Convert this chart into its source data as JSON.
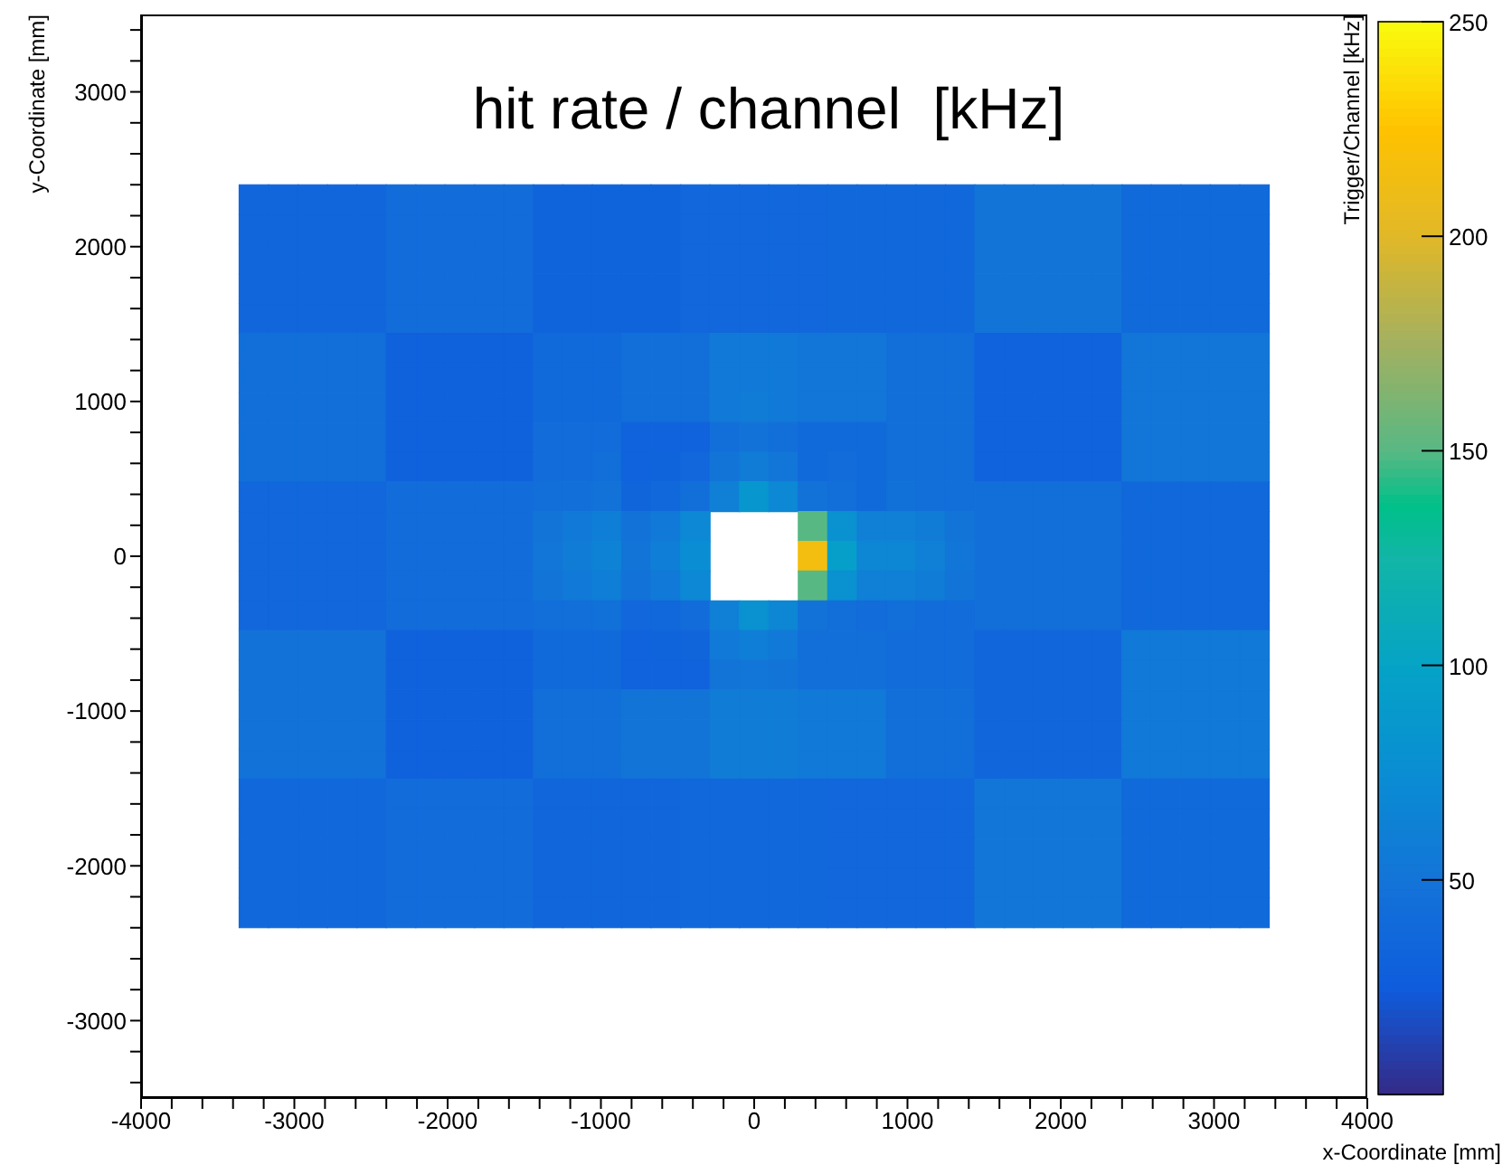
{
  "chart_data": {
    "type": "heatmap",
    "title": "hit rate / channel  [kHz]",
    "xlabel": "x-Coordinate [mm]",
    "ylabel": "y-Coordinate [mm]",
    "clabel": "Trigger/Channel [kHz]",
    "x": [
      -3264,
      -3072,
      -2880,
      -2688,
      -2496,
      -2304,
      -2112,
      -1920,
      -1728,
      -1536,
      -1344,
      -1152,
      -960,
      -768,
      -576,
      -384,
      -192,
      0,
      192,
      384,
      576,
      768,
      960,
      1152,
      1344,
      1536,
      1728,
      1920,
      2112,
      2304,
      2496,
      2688,
      2880,
      3072,
      3264
    ],
    "y": [
      2304,
      2112,
      1920,
      1728,
      1536,
      1344,
      1152,
      960,
      768,
      576,
      384,
      192,
      0,
      -192,
      -384,
      -576,
      -768,
      -960,
      -1152,
      -1344,
      -1536,
      -1728,
      -1920,
      -2112,
      -2304
    ],
    "xlim": [
      -4000,
      4000
    ],
    "ylim": [
      -3500,
      3500
    ],
    "xticks": [
      -4000,
      {
        "value": -3800,
        "label": null
      },
      {
        "value": -3600,
        "label": null
      },
      {
        "value": -3400,
        "label": null
      },
      {
        "value": -3200,
        "label": null
      },
      -3000,
      {
        "value": -2800,
        "label": null
      },
      {
        "value": -2600,
        "label": null
      },
      {
        "value": -2400,
        "label": null
      },
      {
        "value": -2200,
        "label": null
      },
      -2000,
      {
        "value": -1800,
        "label": null
      },
      {
        "value": -1600,
        "label": null
      },
      {
        "value": -1400,
        "label": null
      },
      {
        "value": -1200,
        "label": null
      },
      -1000,
      {
        "value": -800,
        "label": null
      },
      {
        "value": -600,
        "label": null
      },
      {
        "value": -400,
        "label": null
      },
      {
        "value": -200,
        "label": null
      },
      0,
      {
        "value": 200,
        "label": null
      },
      {
        "value": 400,
        "label": null
      },
      {
        "value": 600,
        "label": null
      },
      {
        "value": 800,
        "label": null
      },
      1000,
      {
        "value": 1200,
        "label": null
      },
      {
        "value": 1400,
        "label": null
      },
      {
        "value": 1600,
        "label": null
      },
      {
        "value": 1800,
        "label": null
      },
      2000,
      {
        "value": 2200,
        "label": null
      },
      {
        "value": 2400,
        "label": null
      },
      {
        "value": 2600,
        "label": null
      },
      {
        "value": 2800,
        "label": null
      },
      3000,
      {
        "value": 3200,
        "label": null
      },
      {
        "value": 3400,
        "label": null
      },
      {
        "value": 3600,
        "label": null
      },
      {
        "value": 3800,
        "label": null
      },
      4000
    ],
    "yticks": [
      {
        "value": -3400,
        "label": null
      },
      {
        "value": -3200,
        "label": null
      },
      -3000,
      {
        "value": -2800,
        "label": null
      },
      {
        "value": -2600,
        "label": null
      },
      {
        "value": -2400,
        "label": null
      },
      {
        "value": -2200,
        "label": null
      },
      -2000,
      {
        "value": -1800,
        "label": null
      },
      {
        "value": -1600,
        "label": null
      },
      {
        "value": -1400,
        "label": null
      },
      {
        "value": -1200,
        "label": null
      },
      -1000,
      {
        "value": -800,
        "label": null
      },
      {
        "value": -600,
        "label": null
      },
      {
        "value": -400,
        "label": null
      },
      {
        "value": -200,
        "label": null
      },
      0,
      {
        "value": 200,
        "label": null
      },
      {
        "value": 400,
        "label": null
      },
      {
        "value": 600,
        "label": null
      },
      {
        "value": 800,
        "label": null
      },
      1000,
      {
        "value": 1200,
        "label": null
      },
      {
        "value": 1400,
        "label": null
      },
      {
        "value": 1600,
        "label": null
      },
      {
        "value": 1800,
        "label": null
      },
      2000,
      {
        "value": 2200,
        "label": null
      },
      {
        "value": 2400,
        "label": null
      },
      {
        "value": 2600,
        "label": null
      },
      {
        "value": 2800,
        "label": null
      },
      3000,
      {
        "value": 3200,
        "label": null
      },
      {
        "value": 3400,
        "label": null
      }
    ],
    "clim": [
      0,
      250
    ],
    "cticks": [
      50,
      100,
      150,
      200,
      250
    ],
    "cells": [
      [
        35,
        35,
        35,
        35,
        35,
        42,
        42,
        42,
        42,
        42,
        33,
        33,
        33,
        33,
        33,
        36,
        36,
        36,
        36,
        36,
        37,
        37,
        37,
        37,
        37,
        50,
        50,
        50,
        50,
        50,
        40,
        40,
        40,
        40,
        40
      ],
      [
        35,
        35,
        35,
        35,
        35,
        42,
        42,
        42,
        42,
        42,
        33,
        33,
        33,
        33,
        33,
        36,
        36,
        36,
        36,
        36,
        37,
        37,
        37,
        37,
        37,
        50,
        50,
        50,
        50,
        50,
        40,
        40,
        40,
        40,
        40
      ],
      [
        35,
        35,
        35,
        35,
        35,
        42,
        42,
        42,
        42,
        42,
        33,
        33,
        33,
        33,
        33,
        36,
        36,
        36,
        36,
        36,
        37,
        37,
        37,
        37,
        37,
        50,
        50,
        50,
        50,
        50,
        40,
        40,
        40,
        40,
        40
      ],
      [
        35,
        35,
        35,
        35,
        35,
        42,
        42,
        42,
        42,
        42,
        33,
        33,
        33,
        33,
        33,
        36,
        36,
        36,
        36,
        36,
        37,
        37,
        37,
        37,
        37,
        50,
        50,
        50,
        50,
        50,
        40,
        40,
        40,
        40,
        40
      ],
      [
        35,
        35,
        35,
        35,
        35,
        42,
        42,
        42,
        42,
        42,
        33,
        33,
        33,
        33,
        33,
        36,
        36,
        36,
        36,
        36,
        37,
        37,
        37,
        37,
        37,
        50,
        50,
        50,
        50,
        50,
        40,
        40,
        40,
        40,
        40
      ],
      [
        45,
        45,
        45,
        45,
        45,
        30,
        30,
        30,
        30,
        30,
        40,
        40,
        40,
        45,
        45,
        45,
        55,
        55,
        55,
        52,
        52,
        52,
        45,
        45,
        45,
        32,
        32,
        32,
        32,
        32,
        52,
        52,
        52,
        52,
        52
      ],
      [
        45,
        45,
        45,
        45,
        45,
        30,
        30,
        30,
        30,
        30,
        40,
        40,
        40,
        45,
        45,
        45,
        55,
        55,
        55,
        52,
        52,
        52,
        45,
        45,
        45,
        32,
        32,
        32,
        32,
        32,
        52,
        52,
        52,
        52,
        52
      ],
      [
        45,
        45,
        45,
        45,
        45,
        30,
        30,
        30,
        30,
        30,
        40,
        40,
        40,
        45,
        45,
        45,
        55,
        58,
        55,
        52,
        52,
        52,
        45,
        45,
        45,
        32,
        32,
        32,
        32,
        32,
        52,
        52,
        52,
        52,
        52
      ],
      [
        45,
        45,
        45,
        45,
        45,
        30,
        30,
        30,
        30,
        30,
        42,
        42,
        42,
        32,
        32,
        32,
        45,
        48,
        45,
        40,
        40,
        40,
        45,
        45,
        45,
        32,
        32,
        32,
        32,
        32,
        52,
        52,
        52,
        52,
        52
      ],
      [
        45,
        45,
        45,
        45,
        45,
        30,
        30,
        30,
        30,
        30,
        42,
        42,
        44,
        32,
        33,
        36,
        50,
        58,
        52,
        40,
        42,
        40,
        45,
        45,
        45,
        32,
        32,
        32,
        32,
        32,
        52,
        52,
        52,
        52,
        52
      ],
      [
        36,
        36,
        36,
        36,
        36,
        42,
        42,
        42,
        42,
        42,
        44,
        45,
        48,
        34,
        38,
        45,
        62,
        85,
        70,
        48,
        44,
        40,
        46,
        45,
        45,
        45,
        45,
        45,
        45,
        45,
        38,
        38,
        38,
        38,
        38
      ],
      [
        36,
        36,
        36,
        36,
        36,
        42,
        42,
        42,
        42,
        42,
        50,
        55,
        60,
        48,
        55,
        70,
        null,
        null,
        null,
        150,
        80,
        62,
        62,
        58,
        50,
        45,
        45,
        45,
        45,
        45,
        38,
        38,
        38,
        38,
        38
      ],
      [
        36,
        36,
        36,
        36,
        36,
        42,
        42,
        42,
        42,
        42,
        52,
        58,
        65,
        50,
        60,
        75,
        null,
        null,
        null,
        215,
        95,
        68,
        68,
        62,
        52,
        45,
        45,
        45,
        45,
        45,
        38,
        38,
        38,
        38,
        38
      ],
      [
        36,
        36,
        36,
        36,
        36,
        42,
        42,
        42,
        42,
        42,
        50,
        55,
        60,
        48,
        55,
        70,
        null,
        null,
        null,
        150,
        80,
        62,
        62,
        58,
        50,
        45,
        45,
        45,
        45,
        45,
        38,
        38,
        38,
        38,
        38
      ],
      [
        36,
        36,
        36,
        36,
        36,
        42,
        42,
        42,
        42,
        42,
        44,
        44,
        46,
        36,
        38,
        42,
        62,
        80,
        68,
        48,
        44,
        42,
        44,
        42,
        42,
        45,
        45,
        45,
        45,
        45,
        38,
        38,
        38,
        38,
        38
      ],
      [
        48,
        48,
        48,
        48,
        48,
        30,
        30,
        30,
        30,
        30,
        40,
        40,
        40,
        32,
        33,
        34,
        55,
        60,
        55,
        45,
        45,
        44,
        42,
        42,
        42,
        35,
        35,
        35,
        35,
        35,
        55,
        55,
        55,
        55,
        55
      ],
      [
        48,
        48,
        48,
        48,
        48,
        30,
        30,
        30,
        30,
        30,
        40,
        40,
        40,
        32,
        32,
        32,
        50,
        52,
        50,
        45,
        45,
        45,
        42,
        42,
        42,
        35,
        35,
        35,
        35,
        35,
        55,
        55,
        55,
        55,
        55
      ],
      [
        48,
        48,
        48,
        48,
        48,
        30,
        30,
        30,
        30,
        30,
        45,
        45,
        45,
        50,
        50,
        50,
        58,
        58,
        58,
        55,
        55,
        55,
        45,
        45,
        45,
        35,
        35,
        35,
        35,
        35,
        55,
        55,
        55,
        55,
        55
      ],
      [
        48,
        48,
        48,
        48,
        48,
        30,
        30,
        30,
        30,
        30,
        45,
        45,
        45,
        50,
        50,
        50,
        58,
        58,
        58,
        55,
        55,
        55,
        45,
        45,
        45,
        35,
        35,
        35,
        35,
        35,
        55,
        55,
        55,
        55,
        55
      ],
      [
        48,
        48,
        48,
        48,
        48,
        30,
        30,
        30,
        30,
        30,
        45,
        45,
        45,
        50,
        50,
        50,
        58,
        58,
        58,
        55,
        55,
        55,
        45,
        45,
        45,
        35,
        35,
        35,
        35,
        35,
        55,
        55,
        55,
        55,
        55
      ],
      [
        38,
        38,
        38,
        38,
        38,
        42,
        42,
        42,
        42,
        42,
        35,
        35,
        35,
        35,
        35,
        38,
        38,
        38,
        38,
        38,
        36,
        36,
        36,
        36,
        36,
        52,
        52,
        52,
        52,
        52,
        40,
        40,
        40,
        40,
        40
      ],
      [
        38,
        38,
        38,
        38,
        38,
        42,
        42,
        42,
        42,
        42,
        35,
        35,
        35,
        35,
        35,
        38,
        38,
        38,
        38,
        38,
        36,
        36,
        36,
        36,
        36,
        52,
        52,
        52,
        52,
        52,
        40,
        40,
        40,
        40,
        40
      ],
      [
        38,
        38,
        38,
        38,
        38,
        42,
        42,
        42,
        42,
        42,
        35,
        35,
        35,
        35,
        35,
        38,
        38,
        38,
        38,
        38,
        36,
        36,
        36,
        36,
        36,
        52,
        52,
        52,
        52,
        52,
        40,
        40,
        40,
        40,
        40
      ],
      [
        38,
        38,
        38,
        38,
        38,
        42,
        42,
        42,
        42,
        42,
        35,
        35,
        35,
        35,
        35,
        38,
        38,
        38,
        38,
        38,
        36,
        36,
        36,
        36,
        36,
        52,
        52,
        52,
        52,
        52,
        40,
        40,
        40,
        40,
        40
      ],
      [
        38,
        38,
        38,
        38,
        38,
        42,
        42,
        42,
        42,
        42,
        35,
        35,
        35,
        35,
        35,
        38,
        38,
        38,
        38,
        38,
        36,
        36,
        36,
        36,
        36,
        52,
        52,
        52,
        52,
        52,
        40,
        40,
        40,
        40,
        40
      ]
    ]
  }
}
